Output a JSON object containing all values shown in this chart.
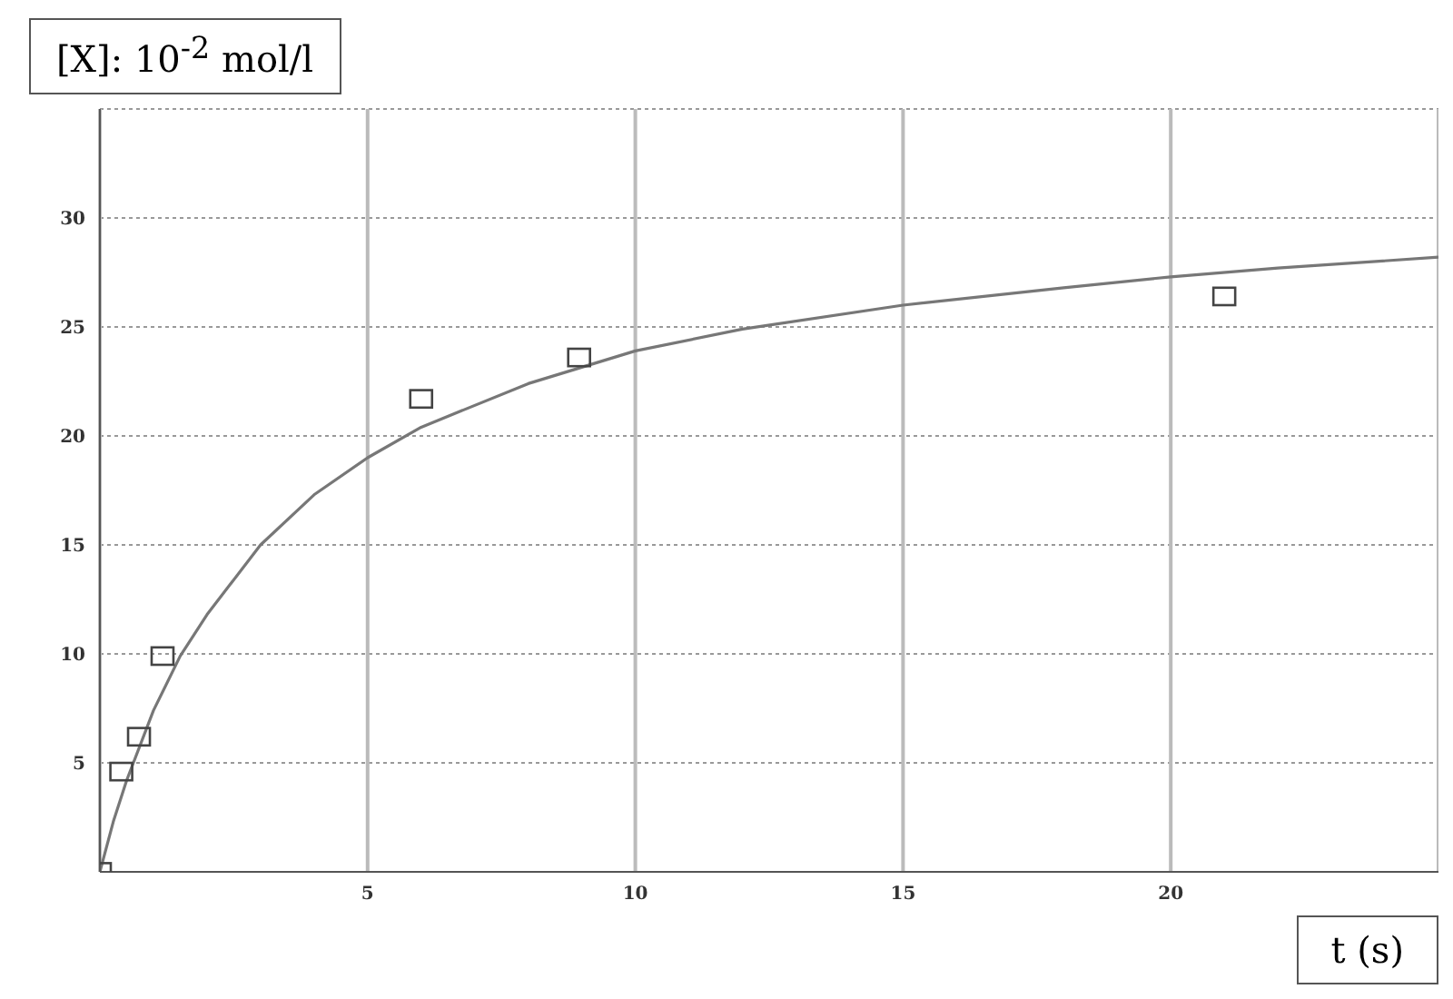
{
  "chart_data": {
    "type": "scatter",
    "xlabel": "t (s)",
    "ylabel": "[X]: 10$^{-2}$ mol/l",
    "xlim": [
      0,
      25
    ],
    "ylim": [
      0,
      35
    ],
    "xticks": [
      5,
      10,
      15,
      20
    ],
    "yticks": [
      5,
      10,
      15,
      20,
      25,
      30
    ],
    "grid": true,
    "marker": "square",
    "series": [
      {
        "color": "#444444",
        "x": [
          0,
          0.4,
          0.73,
          1.17,
          6,
          8.95,
          21
        ],
        "values": [
          0,
          4.6,
          6.2,
          9.9,
          21.7,
          23.6,
          26.4
        ]
      },
      {
        "type": "line",
        "color": "#777777",
        "marker": "none",
        "line_style": "solid",
        "x": [
          0,
          0.25,
          0.5,
          1,
          1.5,
          2,
          3,
          4,
          5,
          6,
          8,
          10,
          12,
          15,
          18,
          20,
          22,
          25
        ],
        "values": [
          0,
          2.3,
          4.2,
          7.4,
          9.9,
          11.8,
          15.0,
          17.3,
          19.0,
          20.4,
          22.4,
          23.9,
          24.9,
          26.0,
          26.8,
          27.3,
          27.7,
          28.2
        ]
      }
    ]
  }
}
